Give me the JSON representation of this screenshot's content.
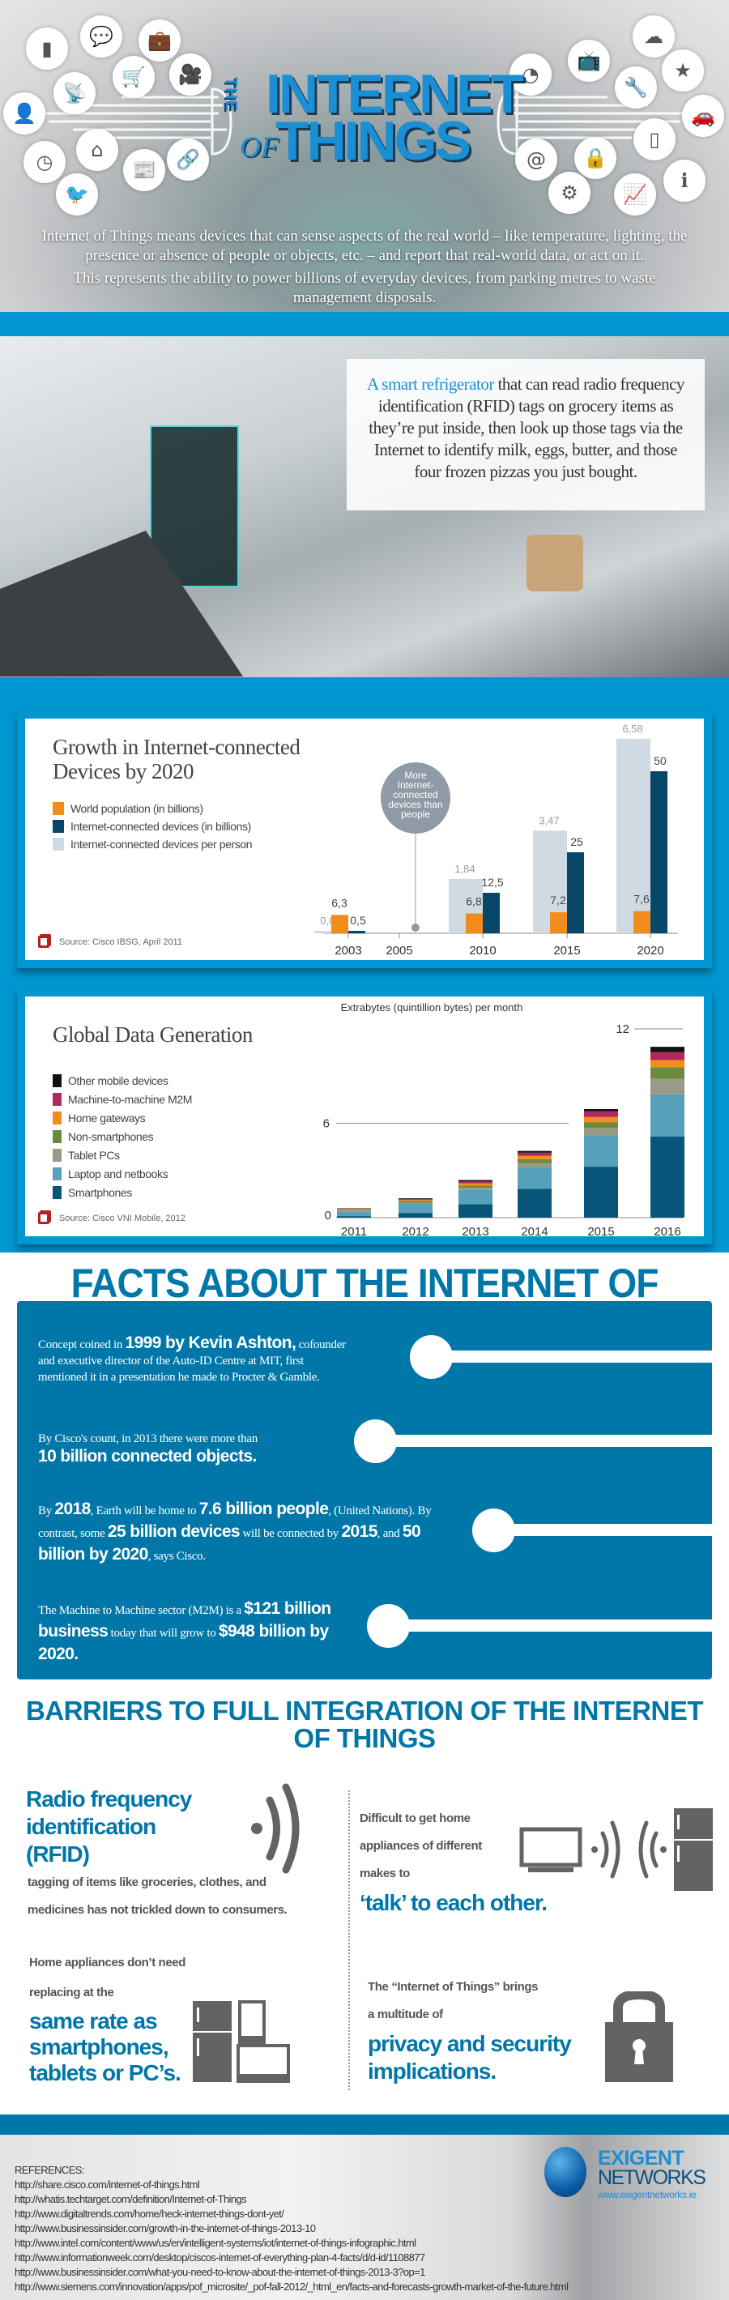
{
  "hero": {
    "title_the": "THE",
    "title_internet": "INTERNET",
    "title_of": "OF",
    "title_things": "THINGS",
    "paragraph1": "Internet of Things means devices that can sense aspects of the real world – like temperature, lighting, the presence or absence of people or objects, etc. – and report that real-world data, or act on it.",
    "paragraph2": "This represents the ability to power billions of everyday devices, from parking metres to waste management disposals.",
    "icons_left": [
      "bar-chart-icon",
      "chat-icon",
      "briefcase-icon",
      "antenna-icon",
      "cart-icon",
      "camera-icon",
      "contact-icon",
      "home-icon",
      "clock-icon",
      "news-icon",
      "link-icon",
      "bird-icon"
    ],
    "icons_right": [
      "pie-chart-icon",
      "tv-icon",
      "cloud-icon",
      "star-icon",
      "tools-icon",
      "car-icon",
      "phone-icon",
      "at-icon",
      "lock-icon",
      "gears-icon",
      "trend-icon",
      "info-icon"
    ]
  },
  "kitchen": {
    "highlight": "A smart refrigerator",
    "text": " that can read radio frequency identification (RFID) tags on grocery items as they’re put inside, then look up those tags via the Internet to identify milk, eggs, butter, and those four frozen pizzas you just bought."
  },
  "colors": {
    "accent": "#0096d1",
    "dark_blue": "#0077a8",
    "title_blue": "#1a8fd4"
  },
  "chart_data": [
    {
      "type": "bar",
      "title": "Growth in Internet-connected Devices by 2020",
      "categories": [
        "2003",
        "2005",
        "2010",
        "2015",
        "2020"
      ],
      "series": [
        {
          "name": "World population (in billions)",
          "color": "#f28c1a",
          "values": [
            6.3,
            null,
            6.8,
            7.2,
            7.6
          ],
          "labels": [
            "6,3",
            "",
            "6,8",
            "7,2",
            "7,6"
          ]
        },
        {
          "name": "Internet-connected devices (in billions)",
          "color": "#08476a",
          "values": [
            0.5,
            null,
            12.5,
            25,
            50
          ],
          "labels": [
            "0,5",
            "",
            "12,5",
            "25",
            "50"
          ]
        },
        {
          "name": "Internet-connected devices per person",
          "color": "#cfdae3",
          "values": [
            0.08,
            null,
            1.84,
            3.47,
            6.58
          ],
          "labels": [
            "0,08",
            "",
            "1,84",
            "3,47",
            "6,58"
          ]
        }
      ],
      "annotation": "More Internet-connected devices than people",
      "source": "Source: Cisco IBSG, April 2011"
    },
    {
      "type": "bar",
      "stacked": true,
      "title": "Global Data Generation",
      "subtitle": "Extrabytes (quintillion bytes) per month",
      "categories": [
        "2011",
        "2012",
        "2013",
        "2014",
        "2015",
        "2016"
      ],
      "yticks": [
        "0",
        "6",
        "12"
      ],
      "ylim": [
        0,
        12
      ],
      "series": [
        {
          "name": "Smartphones",
          "color": "#08557a",
          "values": [
            0.1,
            0.3,
            0.86,
            1.84,
            3.24,
            5.15
          ]
        },
        {
          "name": "Laptop and netbooks",
          "color": "#56a0bb",
          "values": [
            0.3,
            0.6,
            0.9,
            1.35,
            1.96,
            2.69
          ]
        },
        {
          "name": "Tablet PCs",
          "color": "#9a9a88",
          "values": [
            0.05,
            0.05,
            0.15,
            0.27,
            0.48,
            0.98
          ]
        },
        {
          "name": "Non-smartphones",
          "color": "#6c8a3c",
          "values": [
            0.05,
            0.1,
            0.14,
            0.26,
            0.39,
            0.74
          ]
        },
        {
          "name": "Home gateways",
          "color": "#f28c1a",
          "values": [
            0.05,
            0.07,
            0.13,
            0.22,
            0.33,
            0.46
          ]
        },
        {
          "name": "Machine-to-machine M2M",
          "color": "#b3275f",
          "values": [
            0.03,
            0.06,
            0.12,
            0.19,
            0.36,
            0.5
          ]
        },
        {
          "name": "Other mobile devices",
          "color": "#111111",
          "values": [
            0.02,
            0.05,
            0.09,
            0.11,
            0.14,
            0.34
          ]
        }
      ],
      "source": "Source: Cisco VNI Mobile, 2012"
    }
  ],
  "facts": {
    "title": "FACTS ABOUT THE INTERNET OF THINGS",
    "f1": {
      "a": "Concept coined in ",
      "b": "1999 by Kevin Ashton,",
      "c": " cofounder and executive director of the Auto-ID Centre at MIT, first mentioned it in a presentation he made to Procter & Gamble."
    },
    "f2": {
      "a": "By Cisco's count, in 2013 there were more than",
      "b": "10 billion connected objects."
    },
    "f3": {
      "a": "By ",
      "b": "2018",
      "c": ", Earth will be home to ",
      "d": "7.6 billion people",
      "e": ", (United Nations). By contrast, some ",
      "f": "25 billion devices",
      "g": " will be connected by ",
      "h": "2015",
      "i": ", and ",
      "j": "50 billion by 2020",
      "k": ", says Cisco."
    },
    "f4": {
      "a": "The Machine to Machine sector (M2M) is a ",
      "b": "$121 billion business",
      "c": " today that will grow to ",
      "d": "$948 billion by 2020."
    }
  },
  "barriers": {
    "title": "BARRIERS TO FULL INTEGRATION OF THE INTERNET OF THINGS",
    "b1": {
      "head": "Radio frequency identification (RFID)",
      "line1": "tagging of items like groceries, clothes, and",
      "line2": "medicines has not trickled down to consumers."
    },
    "b2": {
      "line1": "Difficult to get home",
      "line2": "appliances of different",
      "line3": "makes to",
      "emph": "‘talk’ to each other."
    },
    "b3": {
      "line1": "Home appliances don’t need",
      "line2": "replacing at the",
      "emph1": "same rate as",
      "emph2": "smartphones,",
      "emph3": "tablets or PC’s."
    },
    "b4": {
      "line1": "The “Internet of Things” brings",
      "line2": "a multitude of",
      "emph1": "privacy and security",
      "emph2": "implications."
    }
  },
  "references": {
    "heading": "REFERENCES:",
    "links": [
      "http://share.cisco.com/internet-of-things.html",
      "http://whatis.techtarget.com/definition/Internet-of-Things",
      "http://www.digitaltrends.com/home/heck-internet-things-dont-yet/",
      "http://www.businessinsider.com/growth-in-the-internet-of-things-2013-10",
      "http://www.intel.com/content/www/us/en/intelligent-systems/iot/internet-of-things-infographic.html",
      "http://www.informationweek.com/desktop/ciscos-internet-of-everything-plan-4-facts/d/d-id/1108877",
      "http://www.businessinsider.com/what-you-need-to-know-about-the-internet-of-things-2013-3?op=1",
      "http://www.siemens.com/innovation/apps/pof_microsite/_pof-fall-2012/_html_en/facts-and-forecasts-growth-market-of-the-future.html"
    ]
  },
  "logo": {
    "line1": "EXIGENT",
    "line2": "NETWORKS",
    "url": "www.exigentnetworks.ie"
  }
}
